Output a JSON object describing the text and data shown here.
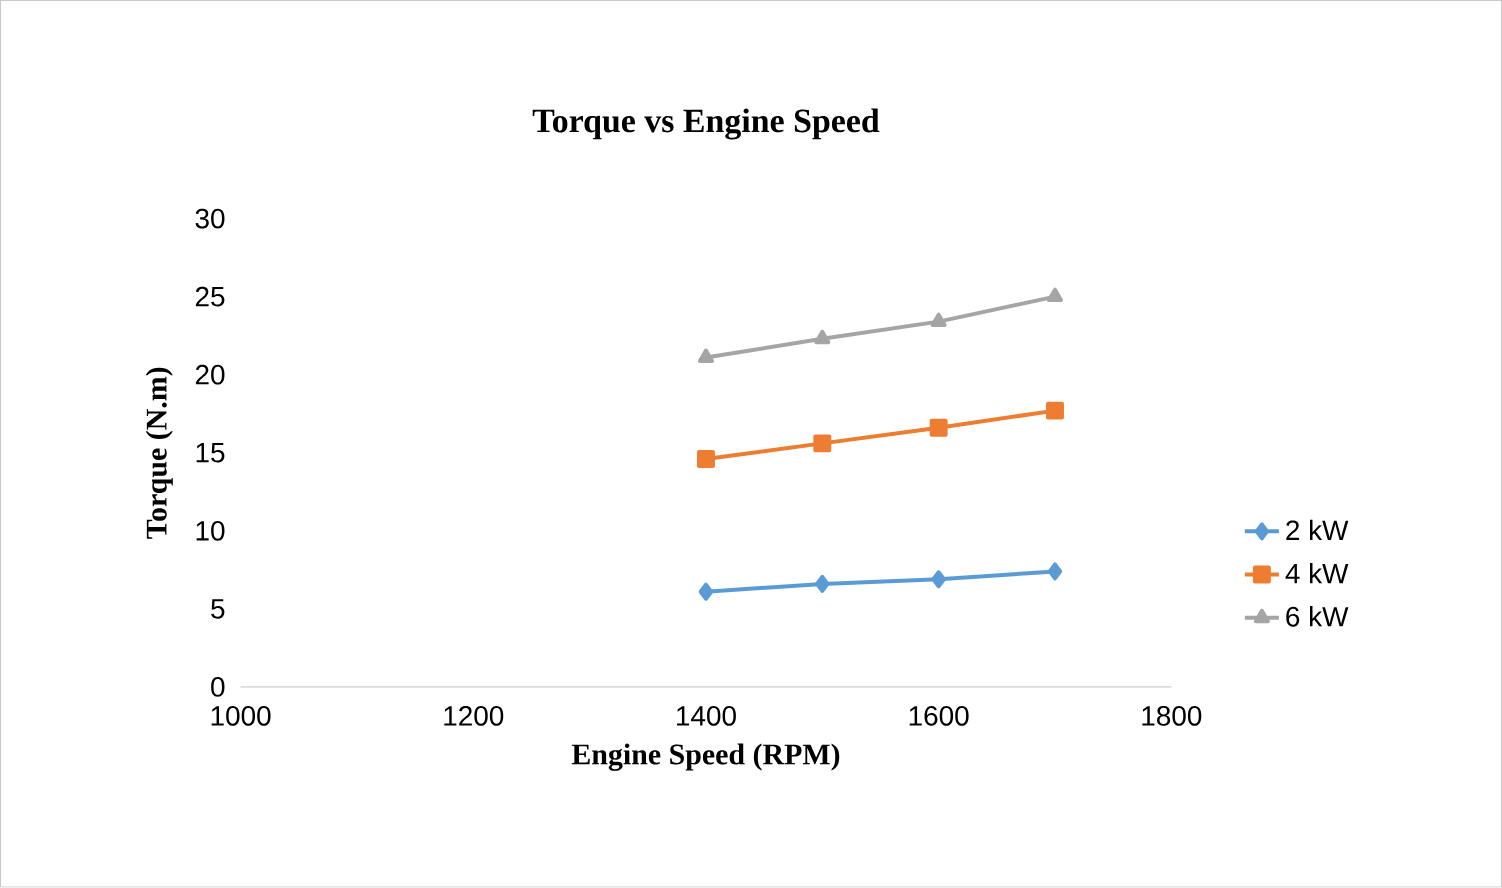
{
  "chart_data": {
    "type": "line",
    "title": "Torque vs Engine Speed",
    "xlabel": "Engine Speed (RPM)",
    "ylabel": "Torque (N.m)",
    "x": [
      1400,
      1500,
      1600,
      1700
    ],
    "series": [
      {
        "name": "2 kW",
        "color": "#5b9bd5",
        "marker": "diamond",
        "values": [
          6.1,
          6.6,
          6.9,
          7.4
        ]
      },
      {
        "name": "4 kW",
        "color": "#ed7d31",
        "marker": "square",
        "values": [
          14.6,
          15.6,
          16.6,
          17.7
        ]
      },
      {
        "name": "6 kW",
        "color": "#a5a5a5",
        "marker": "triangle",
        "values": [
          21.1,
          22.3,
          23.4,
          25.0
        ]
      }
    ],
    "xlim": [
      1000,
      1800
    ],
    "xticks": [
      1000,
      1200,
      1400,
      1600,
      1800
    ],
    "ylim": [
      0,
      30
    ],
    "yticks": [
      0,
      5,
      10,
      15,
      20,
      25,
      30
    ],
    "grid": false,
    "legend": "right",
    "line_style": "solid"
  }
}
